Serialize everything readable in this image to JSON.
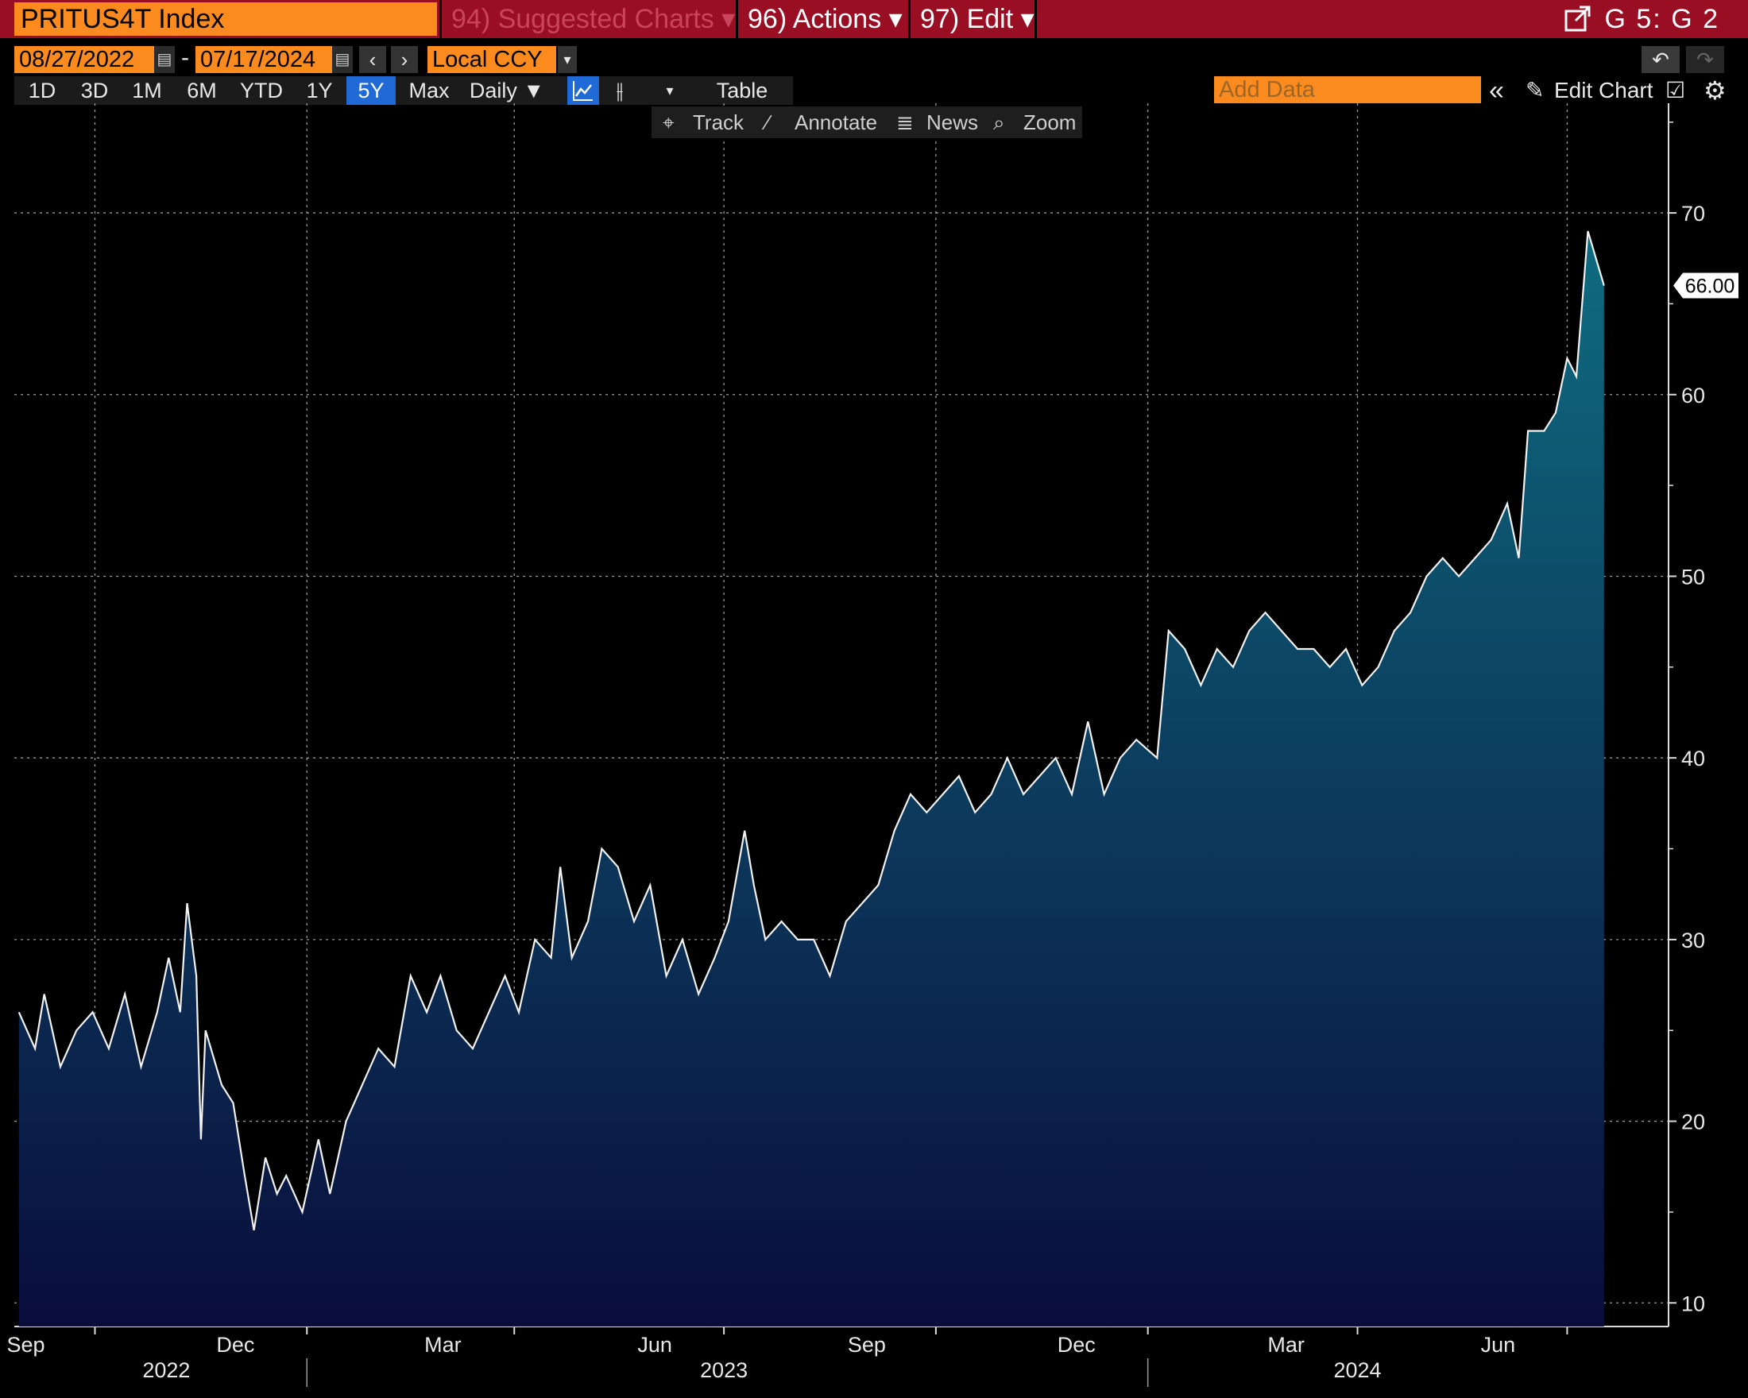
{
  "topbar": {
    "ticker": "PRITUS4T Index",
    "suggested": "94) Suggested Charts ▾",
    "actions": "96) Actions ▾",
    "edit": "97) Edit ▾",
    "window_id": "G 5: G 2",
    "popout_icon": "popout-icon"
  },
  "controls": {
    "start_date": "08/27/2022",
    "end_date": "07/17/2024",
    "dash": "-",
    "currency": "Local CCY",
    "ranges": [
      "1D",
      "3D",
      "1M",
      "6M",
      "YTD",
      "1Y",
      "5Y",
      "Max"
    ],
    "selected_range": "5Y",
    "frequency": "Daily ▼",
    "table": "Table",
    "add_data_placeholder": "Add Data",
    "edit_chart": "Edit Chart",
    "track": "Track",
    "annotate": "Annotate",
    "news": "News",
    "zoom": "Zoom"
  },
  "colors": {
    "accent_orange": "#fb8b1e",
    "topbar_red": "#9a0e23",
    "selected_blue": "#1f6ad6",
    "area_top": "#0e6c80",
    "area_bottom": "#0a0d3c"
  },
  "chart_data": {
    "type": "area",
    "series": [
      {
        "name": "PRITUS4T Index",
        "last_value_label": "66.00",
        "points": [
          [
            "2022-08-29",
            26
          ],
          [
            "2022-09-05",
            24
          ],
          [
            "2022-09-09",
            27
          ],
          [
            "2022-09-16",
            23
          ],
          [
            "2022-09-23",
            25
          ],
          [
            "2022-09-30",
            26
          ],
          [
            "2022-10-07",
            24
          ],
          [
            "2022-10-14",
            27
          ],
          [
            "2022-10-21",
            23
          ],
          [
            "2022-10-28",
            26
          ],
          [
            "2022-11-02",
            29
          ],
          [
            "2022-11-07",
            26
          ],
          [
            "2022-11-10",
            32
          ],
          [
            "2022-11-14",
            28
          ],
          [
            "2022-11-16",
            19
          ],
          [
            "2022-11-18",
            25
          ],
          [
            "2022-11-25",
            22
          ],
          [
            "2022-11-30",
            21
          ],
          [
            "2022-12-05",
            17
          ],
          [
            "2022-12-09",
            14
          ],
          [
            "2022-12-14",
            18
          ],
          [
            "2022-12-19",
            16
          ],
          [
            "2022-12-23",
            17
          ],
          [
            "2022-12-30",
            15
          ],
          [
            "2023-01-06",
            19
          ],
          [
            "2023-01-11",
            16
          ],
          [
            "2023-01-18",
            20
          ],
          [
            "2023-01-25",
            22
          ],
          [
            "2023-02-01",
            24
          ],
          [
            "2023-02-08",
            23
          ],
          [
            "2023-02-15",
            28
          ],
          [
            "2023-02-22",
            26
          ],
          [
            "2023-02-28",
            28
          ],
          [
            "2023-03-07",
            25
          ],
          [
            "2023-03-14",
            24
          ],
          [
            "2023-03-21",
            26
          ],
          [
            "2023-03-28",
            28
          ],
          [
            "2023-04-03",
            26
          ],
          [
            "2023-04-10",
            30
          ],
          [
            "2023-04-17",
            29
          ],
          [
            "2023-04-21",
            34
          ],
          [
            "2023-04-26",
            29
          ],
          [
            "2023-05-03",
            31
          ],
          [
            "2023-05-09",
            35
          ],
          [
            "2023-05-16",
            34
          ],
          [
            "2023-05-23",
            31
          ],
          [
            "2023-05-30",
            33
          ],
          [
            "2023-06-06",
            28
          ],
          [
            "2023-06-13",
            30
          ],
          [
            "2023-06-20",
            27
          ],
          [
            "2023-06-27",
            29
          ],
          [
            "2023-07-03",
            31
          ],
          [
            "2023-07-10",
            36
          ],
          [
            "2023-07-14",
            33
          ],
          [
            "2023-07-19",
            30
          ],
          [
            "2023-07-26",
            31
          ],
          [
            "2023-08-02",
            30
          ],
          [
            "2023-08-09",
            30
          ],
          [
            "2023-08-16",
            28
          ],
          [
            "2023-08-23",
            31
          ],
          [
            "2023-08-30",
            32
          ],
          [
            "2023-09-06",
            33
          ],
          [
            "2023-09-13",
            36
          ],
          [
            "2023-09-20",
            38
          ],
          [
            "2023-09-27",
            37
          ],
          [
            "2023-10-04",
            38
          ],
          [
            "2023-10-11",
            39
          ],
          [
            "2023-10-18",
            37
          ],
          [
            "2023-10-25",
            38
          ],
          [
            "2023-11-01",
            40
          ],
          [
            "2023-11-08",
            38
          ],
          [
            "2023-11-15",
            39
          ],
          [
            "2023-11-22",
            40
          ],
          [
            "2023-11-29",
            38
          ],
          [
            "2023-12-06",
            42
          ],
          [
            "2023-12-13",
            38
          ],
          [
            "2023-12-20",
            40
          ],
          [
            "2023-12-27",
            41
          ],
          [
            "2024-01-05",
            40
          ],
          [
            "2024-01-10",
            47
          ],
          [
            "2024-01-17",
            46
          ],
          [
            "2024-01-24",
            44
          ],
          [
            "2024-01-31",
            46
          ],
          [
            "2024-02-07",
            45
          ],
          [
            "2024-02-14",
            47
          ],
          [
            "2024-02-21",
            48
          ],
          [
            "2024-02-28",
            47
          ],
          [
            "2024-03-06",
            46
          ],
          [
            "2024-03-13",
            46
          ],
          [
            "2024-03-20",
            45
          ],
          [
            "2024-03-27",
            46
          ],
          [
            "2024-04-03",
            44
          ],
          [
            "2024-04-10",
            45
          ],
          [
            "2024-04-17",
            47
          ],
          [
            "2024-04-24",
            48
          ],
          [
            "2024-05-01",
            50
          ],
          [
            "2024-05-08",
            51
          ],
          [
            "2024-05-15",
            50
          ],
          [
            "2024-05-22",
            51
          ],
          [
            "2024-05-29",
            52
          ],
          [
            "2024-06-05",
            54
          ],
          [
            "2024-06-10",
            51
          ],
          [
            "2024-06-14",
            58
          ],
          [
            "2024-06-21",
            58
          ],
          [
            "2024-06-26",
            59
          ],
          [
            "2024-07-01",
            62
          ],
          [
            "2024-07-05",
            61
          ],
          [
            "2024-07-10",
            69
          ],
          [
            "2024-07-17",
            66
          ]
        ]
      }
    ],
    "y_ticks": [
      10,
      20,
      30,
      40,
      50,
      60,
      70
    ],
    "ylim": [
      8.7,
      75.6
    ],
    "xlim": [
      "2022-08-27",
      "2024-08-14"
    ],
    "x_month_labels": [
      [
        "2022-09-01",
        "Sep"
      ],
      [
        "2022-12-01",
        "Dec"
      ],
      [
        "2023-03-01",
        "Mar"
      ],
      [
        "2023-06-01",
        "Jun"
      ],
      [
        "2023-09-01",
        "Sep"
      ],
      [
        "2023-12-01",
        "Dec"
      ],
      [
        "2024-03-01",
        "Mar"
      ],
      [
        "2024-06-01",
        "Jun"
      ]
    ],
    "x_year_labels": [
      [
        "2022-11-01",
        "2022"
      ],
      [
        "2023-07-01",
        "2023"
      ],
      [
        "2024-04-01",
        "2024"
      ]
    ],
    "year_dividers": [
      "2023-01-01",
      "2024-01-01"
    ],
    "vertical_grid": [
      "2022-10-01",
      "2023-01-01",
      "2023-04-01",
      "2023-07-01",
      "2023-10-01",
      "2024-01-01",
      "2024-04-01",
      "2024-07-01"
    ],
    "grid": true,
    "y_axis_side": "right"
  }
}
